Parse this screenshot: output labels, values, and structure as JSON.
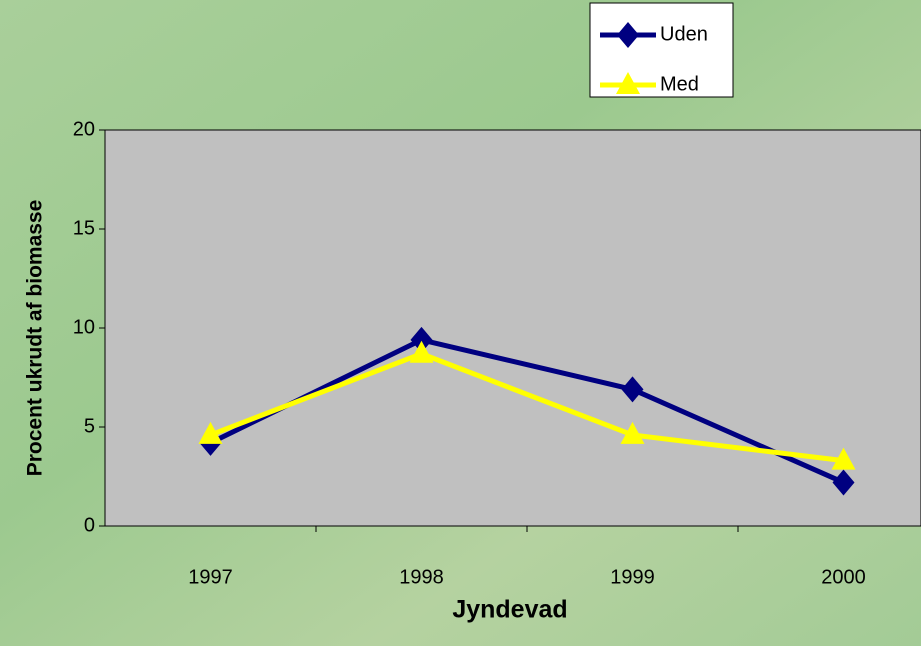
{
  "chart_data": {
    "type": "line",
    "x_label": "Jyndevad",
    "y_label": "Procent ukrudt af biomasse",
    "categories": [
      "1997",
      "1998",
      "1999",
      "2000"
    ],
    "series": [
      {
        "name": "Uden",
        "color": "#000080",
        "marker": "diamond",
        "values": [
          4.2,
          9.4,
          6.9,
          2.2
        ]
      },
      {
        "name": "Med",
        "color": "#ffff00",
        "marker": "triangle",
        "values": [
          4.6,
          8.7,
          4.6,
          3.3
        ]
      }
    ],
    "ylim": [
      0,
      20
    ],
    "yticks": [
      0,
      5,
      10,
      15,
      20
    ]
  }
}
